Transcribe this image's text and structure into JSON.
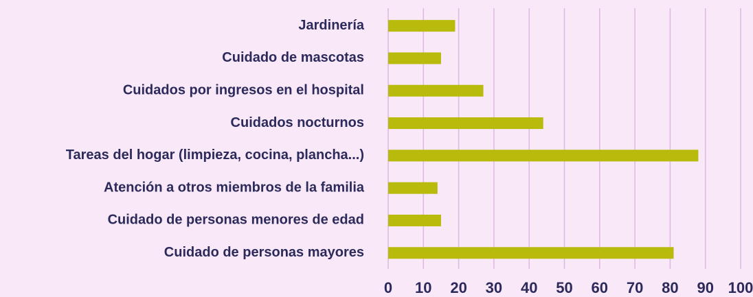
{
  "chart_data": {
    "type": "barh",
    "categories": [
      "Jardinería",
      "Cuidado de mascotas",
      "Cuidados por ingresos en el hospital",
      "Cuidados nocturnos",
      "Tareas del hogar (limpieza, cocina, plancha...)",
      "Atención a otros miembros de la familia",
      "Cuidado de personas menores de edad",
      "Cuidado de personas mayores"
    ],
    "values": [
      19,
      15,
      27,
      44,
      88,
      14,
      15,
      81
    ],
    "color": "#b8bb0c",
    "xlim": [
      0,
      100
    ],
    "xticks": [
      0,
      10,
      20,
      30,
      40,
      50,
      60,
      70,
      80,
      90,
      100
    ],
    "grid": true
  }
}
